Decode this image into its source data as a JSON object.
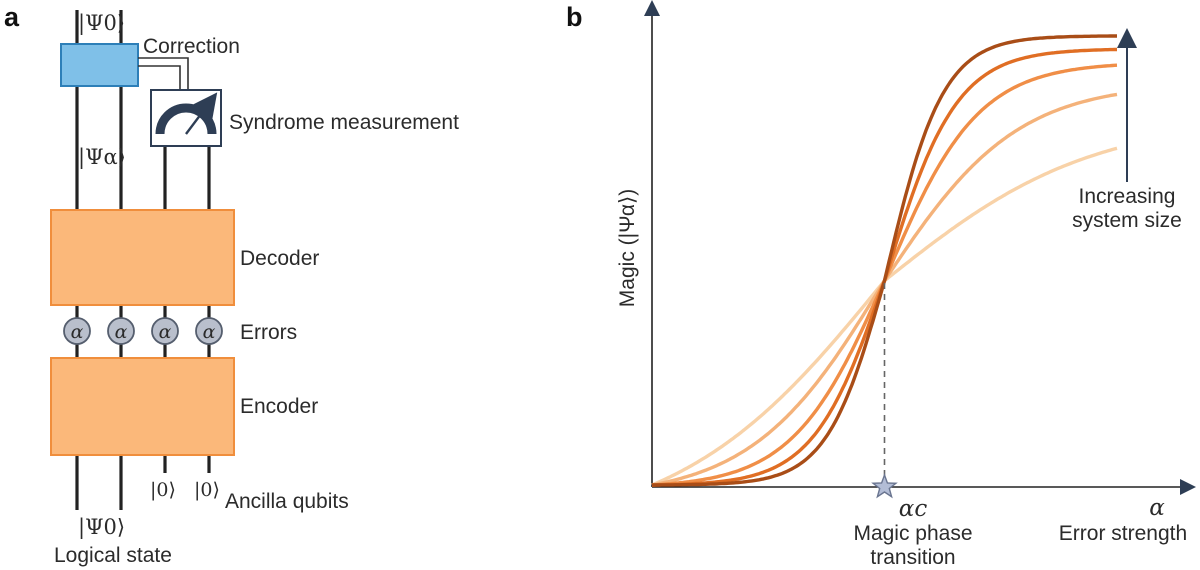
{
  "panels": {
    "a": "a",
    "b": "b"
  },
  "diagram": {
    "top_state": "|Ψ0⟩",
    "correction": "Correction",
    "syndrome": "Syndrome measurement",
    "mid_state": "|Ψα⟩",
    "decoder": "Decoder",
    "error_symbol": "α",
    "errors": "Errors",
    "encoder": "Encoder",
    "ancilla_ket": "|0⟩",
    "ancilla": "Ancilla qubits",
    "bottom_state": "|Ψ0⟩",
    "logical": "Logical state"
  },
  "chart_data": {
    "type": "line",
    "title": "",
    "xlabel": "Error strength",
    "x_symbol": "α",
    "ylabel": "Magic (|Ψα⟩)",
    "critical_label": "αc",
    "critical_x": 0.5,
    "annotation_title": "Magic phase",
    "annotation_subtitle": "transition",
    "arrow_note_line1": "Increasing",
    "arrow_note_line2": "system size",
    "xlim": [
      0,
      1
    ],
    "ylim": [
      0,
      1
    ],
    "critical_y": 0.455,
    "grid": false,
    "series": [
      {
        "color": "#f8d2a8",
        "steepness": 4.5,
        "y_right": 0.75
      },
      {
        "color": "#f4b27a",
        "steepness": 7,
        "y_right": 0.87
      },
      {
        "color": "#f08e47",
        "steepness": 10,
        "y_right": 0.935
      },
      {
        "color": "#e06e24",
        "steepness": 13,
        "y_right": 0.97
      },
      {
        "color": "#a94d17",
        "steepness": 16,
        "y_right": 1.0
      }
    ]
  }
}
